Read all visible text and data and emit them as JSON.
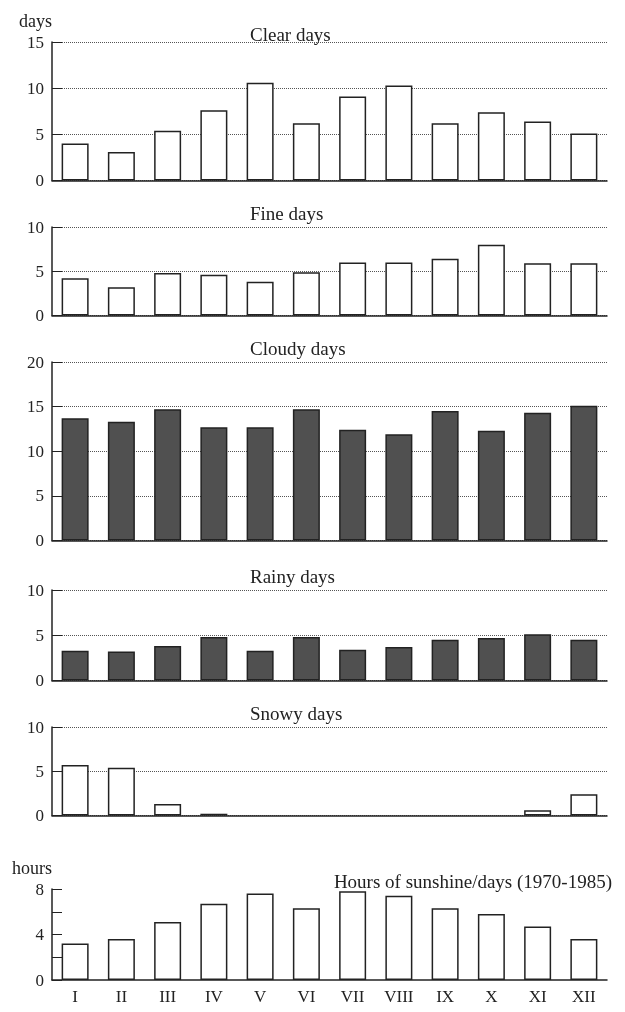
{
  "chart_data": [
    {
      "type": "bar",
      "title": "Clear days",
      "ylabel": "days",
      "categories": [
        null,
        null,
        null,
        null,
        null,
        null,
        null,
        null,
        null,
        null,
        null,
        null
      ],
      "values": [
        4.0,
        3.1,
        5.4,
        7.6,
        10.6,
        6.2,
        9.1,
        10.3,
        6.2,
        7.4,
        6.4,
        5.1
      ],
      "color": "#ffffff",
      "ylim": [
        0,
        15
      ],
      "yticks": [
        0,
        5,
        10,
        15
      ],
      "grid": "y"
    },
    {
      "type": "bar",
      "title": "Fine days",
      "categories": [
        null,
        null,
        null,
        null,
        null,
        null,
        null,
        null,
        null,
        null,
        null,
        null
      ],
      "values": [
        4.2,
        3.2,
        4.8,
        4.6,
        3.8,
        4.9,
        6.0,
        6.0,
        6.4,
        8.0,
        5.9,
        5.9
      ],
      "color": "#ffffff",
      "ylim": [
        0,
        10
      ],
      "yticks": [
        0,
        5,
        10
      ],
      "grid": "y"
    },
    {
      "type": "bar",
      "title": "Cloudy days",
      "categories": [
        null,
        null,
        null,
        null,
        null,
        null,
        null,
        null,
        null,
        null,
        null,
        null
      ],
      "values": [
        13.7,
        13.3,
        14.7,
        12.7,
        12.7,
        14.7,
        12.4,
        11.9,
        14.5,
        12.3,
        14.3,
        15.1
      ],
      "color": "#505050",
      "ylim": [
        0,
        20
      ],
      "yticks": [
        0,
        5,
        10,
        15,
        20
      ],
      "grid": "y"
    },
    {
      "type": "bar",
      "title": "Rainy days",
      "categories": [
        null,
        null,
        null,
        null,
        null,
        null,
        null,
        null,
        null,
        null,
        null,
        null
      ],
      "values": [
        3.3,
        3.2,
        3.8,
        4.8,
        3.3,
        4.8,
        3.4,
        3.7,
        4.5,
        4.7,
        5.1,
        4.5
      ],
      "color": "#505050",
      "ylim": [
        0,
        10
      ],
      "yticks": [
        0,
        5,
        10
      ],
      "grid": "y"
    },
    {
      "type": "bar",
      "title": "Snowy days",
      "categories": [
        null,
        null,
        null,
        null,
        null,
        null,
        null,
        null,
        null,
        null,
        null,
        null
      ],
      "values": [
        5.7,
        5.4,
        1.3,
        0.2,
        0,
        0,
        0,
        0,
        0,
        0,
        0.6,
        2.4
      ],
      "color": "#ffffff",
      "ylim": [
        0,
        10
      ],
      "yticks": [
        0,
        5,
        10
      ],
      "grid": "y"
    },
    {
      "type": "bar",
      "title": "Hours of sunshine/days (1970-1985)",
      "ylabel": "hours",
      "categories": [
        "I",
        "II",
        "III",
        "IV",
        "V",
        "VI",
        "VII",
        "VIII",
        "IX",
        "X",
        "XI",
        "XII"
      ],
      "values": [
        3.2,
        3.6,
        5.1,
        6.7,
        7.6,
        6.3,
        7.8,
        7.4,
        6.3,
        5.8,
        4.7,
        3.6
      ],
      "color": "#ffffff",
      "ylim": [
        0,
        8
      ],
      "yticks": [
        0,
        {
          "value": 2,
          "label": null
        },
        4,
        {
          "value": 6,
          "label": null
        },
        8
      ]
    }
  ]
}
